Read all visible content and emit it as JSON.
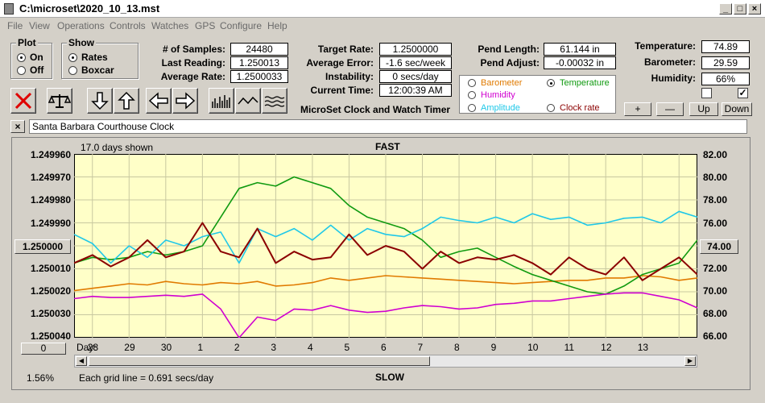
{
  "window": {
    "title": "C:\\microset\\2020_10_13.mst"
  },
  "menu": [
    "File",
    "View",
    "Operations",
    "Controls",
    "Watches",
    "GPS",
    "Configure",
    "Help"
  ],
  "plot_group": {
    "title": "Plot",
    "options": [
      "On",
      "Off"
    ],
    "selected": "On"
  },
  "show_group": {
    "title": "Show",
    "options": [
      "Rates",
      "Boxcar"
    ],
    "selected": "Rates"
  },
  "stats": {
    "samples_label": "# of Samples:",
    "samples": "24480",
    "last_reading_label": "Last Reading:",
    "last_reading": "1.250013",
    "average_rate_label": "Average Rate:",
    "average_rate": "1.2500033",
    "target_rate_label": "Target Rate:",
    "target_rate": "1.2500000",
    "average_error_label": "Average Error:",
    "average_error": "-1.6 sec/week",
    "instability_label": "Instability:",
    "instability": "0 secs/day",
    "current_time_label": "Current Time:",
    "current_time": "12:00:39 AM",
    "pend_length_label": "Pend Length:",
    "pend_length": "61.144 in",
    "pend_adjust_label": "Pend Adjust:",
    "pend_adjust": "-0.00032 in",
    "temperature_label": "Temperature:",
    "temperature": "74.89",
    "barometer_label": "Barometer:",
    "barometer": "29.59",
    "humidity_label": "Humidity:",
    "humidity": "66%"
  },
  "app_caption": "MicroSet Clock and Watch Timer",
  "plot_select": {
    "items": [
      {
        "label": "Barometer",
        "color": "#e07a00",
        "selected": false
      },
      {
        "label": "Temperature",
        "color": "#109a10",
        "selected": true
      },
      {
        "label": "Humidity",
        "color": "#d000d0",
        "selected": false
      },
      {
        "label": "Amplitude",
        "color": "#20c8e8",
        "selected": false
      },
      {
        "label": "Clock rate",
        "color": "#8b0000",
        "selected": false
      }
    ]
  },
  "axis_buttons": {
    "plus": "+",
    "minus": "—",
    "up": "Up",
    "down": "Down"
  },
  "checkboxes": [
    {
      "checked": false
    },
    {
      "checked": true
    }
  ],
  "toolbar_icons": [
    "clear-icon",
    "balance-scale-icon",
    "arrow-down-icon",
    "arrow-up-icon",
    "arrow-left-icon",
    "arrow-right-icon",
    "spikes-icon",
    "wave-icon",
    "flat-waves-icon"
  ],
  "clock_name": "Santa Barbara Courthouse Clock",
  "graph": {
    "days_shown": "17.0 days shown",
    "top_label": "FAST",
    "bottom_label": "SLOW",
    "center_value": "1.250000",
    "right_center_value": "74.00",
    "bottom_left_value": "0",
    "scale_percent": "1.56%",
    "grid_note": "Each grid line = 0.691 secs/day",
    "day_prefix": "Day:"
  },
  "chart_data": {
    "type": "line",
    "left_axis_ticks": [
      "1.249960",
      "1.249970",
      "1.249980",
      "1.249990",
      "1.250000",
      "1.250010",
      "1.250020",
      "1.250030",
      "1.250040"
    ],
    "right_axis_ticks": [
      "82.00",
      "80.00",
      "78.00",
      "76.00",
      "74.00",
      "72.00",
      "70.00",
      "68.00",
      "66.00"
    ],
    "left_ylim": [
      1.24996,
      1.25004
    ],
    "right_ylim": [
      66,
      82
    ],
    "x_ticks": [
      "28",
      "29",
      "30",
      "1",
      "2",
      "3",
      "4",
      "5",
      "6",
      "7",
      "8",
      "9",
      "10",
      "11",
      "12",
      "13"
    ],
    "x_range_days": [
      27.5,
      44.5
    ],
    "grid": true,
    "series": [
      {
        "name": "Barometer",
        "color": "#e07a00",
        "x": [
          27.5,
          28,
          28.5,
          29,
          29.5,
          30,
          30.5,
          31,
          31.5,
          32,
          32.5,
          33,
          33.5,
          34,
          34.5,
          35,
          35.5,
          36,
          36.5,
          37,
          37.5,
          38,
          38.5,
          39,
          39.5,
          40,
          40.5,
          41,
          41.5,
          42,
          42.5,
          43,
          43.5,
          44,
          44.5
        ],
        "y": [
          70.1,
          70.3,
          70.5,
          70.7,
          70.6,
          70.9,
          70.7,
          70.6,
          70.8,
          70.7,
          70.9,
          70.5,
          70.6,
          70.8,
          71.2,
          71.0,
          71.2,
          71.4,
          71.3,
          71.2,
          71.1,
          71.0,
          70.9,
          70.8,
          70.7,
          70.8,
          70.9,
          71.0,
          71.0,
          71.2,
          71.2,
          71.4,
          71.3,
          71.0,
          71.2
        ]
      },
      {
        "name": "Temperature",
        "color": "#109a10",
        "x": [
          27.5,
          28,
          28.5,
          29,
          29.5,
          30,
          30.5,
          31,
          31.5,
          32,
          32.5,
          33,
          33.5,
          34,
          34.5,
          35,
          35.5,
          36,
          36.5,
          37,
          37.5,
          38,
          38.5,
          39,
          39.5,
          40,
          40.5,
          41,
          41.5,
          42,
          42.5,
          43,
          43.5,
          44,
          44.5
        ],
        "y": [
          72.5,
          73.0,
          72.8,
          73.0,
          73.5,
          73.2,
          73.5,
          74.0,
          76.5,
          79.0,
          79.5,
          79.2,
          80.0,
          79.5,
          79.0,
          77.5,
          76.5,
          76.0,
          75.5,
          74.5,
          73.0,
          73.5,
          73.8,
          73.0,
          72.2,
          71.5,
          71.0,
          70.5,
          70.0,
          69.8,
          70.5,
          71.5,
          72.0,
          72.5,
          74.5
        ]
      },
      {
        "name": "Humidity",
        "color": "#d000d0",
        "x": [
          27.5,
          28,
          28.5,
          29,
          29.5,
          30,
          30.5,
          31,
          31.5,
          32,
          32.5,
          33,
          33.5,
          34,
          34.5,
          35,
          35.5,
          36,
          36.5,
          37,
          37.5,
          38,
          38.5,
          39,
          39.5,
          40,
          40.5,
          41,
          41.5,
          42,
          42.5,
          43,
          43.5,
          44,
          44.5
        ],
        "y": [
          69.4,
          69.6,
          69.5,
          69.5,
          69.6,
          69.7,
          69.6,
          69.8,
          68.5,
          66.0,
          67.8,
          67.5,
          68.5,
          68.4,
          68.8,
          68.4,
          68.2,
          68.3,
          68.6,
          68.8,
          68.7,
          68.5,
          68.6,
          68.9,
          69.0,
          69.2,
          69.2,
          69.4,
          69.6,
          69.8,
          69.9,
          69.9,
          69.6,
          69.3,
          68.6
        ]
      },
      {
        "name": "Amplitude",
        "color": "#20c8e8",
        "x": [
          27.5,
          28,
          28.5,
          29,
          29.5,
          30,
          30.5,
          31,
          31.5,
          32,
          32.5,
          33,
          33.5,
          34,
          34.5,
          35,
          35.5,
          36,
          36.5,
          37,
          37.5,
          38,
          38.5,
          39,
          39.5,
          40,
          40.5,
          41,
          41.5,
          42,
          42.5,
          43,
          43.5,
          44,
          44.5
        ],
        "y": [
          75.0,
          74.2,
          72.5,
          74.0,
          73.0,
          74.5,
          74.0,
          74.8,
          75.2,
          72.5,
          75.5,
          74.8,
          75.5,
          74.5,
          75.8,
          74.5,
          75.5,
          75.0,
          74.8,
          75.5,
          76.5,
          76.2,
          76.0,
          76.5,
          76.0,
          76.8,
          76.3,
          76.5,
          75.8,
          76.0,
          76.4,
          76.5,
          76.0,
          77.0,
          76.5
        ]
      },
      {
        "name": "Clock rate",
        "color": "#8b0000",
        "x": [
          27.5,
          28,
          28.5,
          29,
          29.5,
          30,
          30.5,
          31,
          31.5,
          32,
          32.5,
          33,
          33.5,
          34,
          34.5,
          35,
          35.5,
          36,
          36.5,
          37,
          37.5,
          38,
          38.5,
          39,
          39.5,
          40,
          40.5,
          41,
          41.5,
          42,
          42.5,
          43,
          43.5,
          44,
          44.5
        ],
        "y": [
          72.5,
          73.2,
          72.2,
          73.0,
          74.5,
          73.0,
          73.5,
          76.0,
          73.5,
          73.0,
          75.5,
          72.5,
          73.5,
          72.8,
          73.0,
          75.0,
          73.2,
          74.0,
          73.5,
          72.0,
          73.5,
          72.5,
          73.0,
          72.8,
          73.2,
          72.5,
          71.5,
          73.0,
          72.0,
          71.5,
          73.0,
          71.0,
          72.0,
          73.0,
          71.5
        ]
      }
    ]
  }
}
